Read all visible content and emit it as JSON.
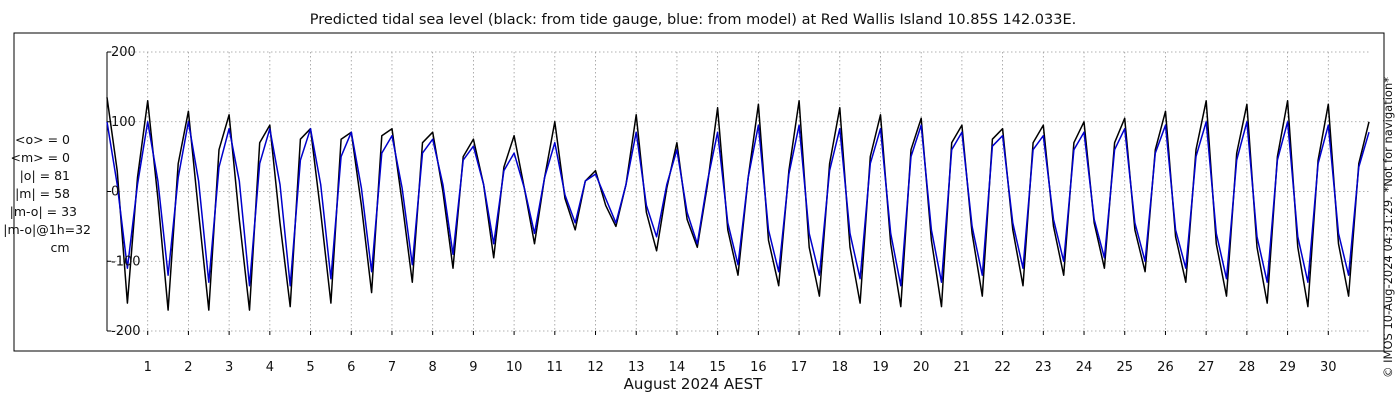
{
  "chart_data": {
    "type": "line",
    "title": "Predicted tidal sea level (black: from tide gauge, blue: from model) at Red Wallis Island 10.85S 142.033E.",
    "xlabel": "August 2024 AEST",
    "ylabel": "",
    "units": "cm",
    "xlim": [
      0.0,
      31.0
    ],
    "ylim": [
      -200,
      200
    ],
    "yticks": [
      -200,
      -100,
      0,
      100,
      200
    ],
    "xticks": [
      1,
      2,
      3,
      4,
      5,
      6,
      7,
      8,
      9,
      10,
      11,
      12,
      13,
      14,
      15,
      16,
      17,
      18,
      19,
      20,
      21,
      22,
      23,
      24,
      25,
      26,
      27,
      28,
      29,
      30
    ],
    "grid": true,
    "series": [
      {
        "color": "#000000",
        "x": [
          0.0,
          0.25,
          0.5,
          0.75,
          1.0,
          1.25,
          1.5,
          1.75,
          2.0,
          2.25,
          2.5,
          2.75,
          3.0,
          3.25,
          3.5,
          3.75,
          4.0,
          4.25,
          4.5,
          4.75,
          5.0,
          5.25,
          5.5,
          5.75,
          6.0,
          6.25,
          6.5,
          6.75,
          7.0,
          7.25,
          7.5,
          7.75,
          8.0,
          8.25,
          8.5,
          8.75,
          9.0,
          9.25,
          9.5,
          9.75,
          10.0,
          10.25,
          10.5,
          10.75,
          11.0,
          11.25,
          11.5,
          11.75,
          12.0,
          12.25,
          12.5,
          12.75,
          13.0,
          13.25,
          13.5,
          13.75,
          14.0,
          14.25,
          14.5,
          14.75,
          15.0,
          15.25,
          15.5,
          15.75,
          16.0,
          16.25,
          16.5,
          16.75,
          17.0,
          17.25,
          17.5,
          17.75,
          18.0,
          18.25,
          18.5,
          18.75,
          19.0,
          19.25,
          19.5,
          19.75,
          20.0,
          20.25,
          20.5,
          20.75,
          21.0,
          21.25,
          21.5,
          21.75,
          22.0,
          22.25,
          22.5,
          22.75,
          23.0,
          23.25,
          23.5,
          23.75,
          24.0,
          24.25,
          24.5,
          24.75,
          25.0,
          25.25,
          25.5,
          25.75,
          26.0,
          26.25,
          26.5,
          26.75,
          27.0,
          27.25,
          27.5,
          27.75,
          28.0,
          28.25,
          28.5,
          28.75,
          29.0,
          29.25,
          29.5,
          29.75,
          30.0,
          30.25,
          30.5,
          30.75,
          31.0
        ],
        "y": [
          135,
          30,
          -160,
          20,
          130,
          -10,
          -170,
          40,
          115,
          -30,
          -170,
          60,
          110,
          -40,
          -170,
          70,
          95,
          -45,
          -165,
          75,
          90,
          -30,
          -160,
          75,
          85,
          -20,
          -145,
          80,
          90,
          -15,
          -130,
          70,
          85,
          0,
          -110,
          50,
          75,
          10,
          -95,
          35,
          80,
          5,
          -75,
          20,
          100,
          -10,
          -55,
          15,
          30,
          -20,
          -50,
          10,
          110,
          -30,
          -85,
          5,
          70,
          -40,
          -80,
          10,
          120,
          -55,
          -120,
          20,
          125,
          -70,
          -135,
          30,
          130,
          -80,
          -150,
          40,
          120,
          -80,
          -160,
          50,
          110,
          -75,
          -165,
          60,
          105,
          -70,
          -165,
          70,
          95,
          -60,
          -150,
          75,
          90,
          -55,
          -135,
          70,
          95,
          -50,
          -120,
          70,
          100,
          -45,
          -110,
          70,
          105,
          -55,
          -115,
          60,
          115,
          -65,
          -130,
          60,
          130,
          -75,
          -150,
          55,
          125,
          -80,
          -160,
          50,
          130,
          -80,
          -165,
          45,
          125,
          -75,
          -150,
          40,
          100
        ]
      },
      {
        "color": "#0000cc",
        "x": [
          0.0,
          0.25,
          0.5,
          0.75,
          1.0,
          1.25,
          1.5,
          1.75,
          2.0,
          2.25,
          2.5,
          2.75,
          3.0,
          3.25,
          3.5,
          3.75,
          4.0,
          4.25,
          4.5,
          4.75,
          5.0,
          5.25,
          5.5,
          5.75,
          6.0,
          6.25,
          6.5,
          6.75,
          7.0,
          7.25,
          7.5,
          7.75,
          8.0,
          8.25,
          8.5,
          8.75,
          9.0,
          9.25,
          9.5,
          9.75,
          10.0,
          10.25,
          10.5,
          10.75,
          11.0,
          11.25,
          11.5,
          11.75,
          12.0,
          12.25,
          12.5,
          12.75,
          13.0,
          13.25,
          13.5,
          13.75,
          14.0,
          14.25,
          14.5,
          14.75,
          15.0,
          15.25,
          15.5,
          15.75,
          16.0,
          16.25,
          16.5,
          16.75,
          17.0,
          17.25,
          17.5,
          17.75,
          18.0,
          18.25,
          18.5,
          18.75,
          19.0,
          19.25,
          19.5,
          19.75,
          20.0,
          20.25,
          20.5,
          20.75,
          21.0,
          21.25,
          21.5,
          21.75,
          22.0,
          22.25,
          22.5,
          22.75,
          23.0,
          23.25,
          23.5,
          23.75,
          24.0,
          24.25,
          24.5,
          24.75,
          25.0,
          25.25,
          25.5,
          25.75,
          26.0,
          26.25,
          26.5,
          26.75,
          27.0,
          27.25,
          27.5,
          27.75,
          28.0,
          28.25,
          28.5,
          28.75,
          29.0,
          29.25,
          29.5,
          29.75,
          30.0,
          30.25,
          30.5,
          30.75,
          31.0
        ],
        "y": [
          100,
          10,
          -110,
          10,
          100,
          15,
          -120,
          20,
          100,
          15,
          -130,
          35,
          90,
          15,
          -135,
          40,
          90,
          10,
          -135,
          45,
          90,
          10,
          -125,
          50,
          85,
          5,
          -115,
          55,
          80,
          5,
          -105,
          55,
          75,
          10,
          -90,
          45,
          65,
          10,
          -75,
          30,
          55,
          5,
          -60,
          20,
          70,
          -5,
          -45,
          15,
          25,
          -10,
          -45,
          10,
          85,
          -20,
          -65,
          10,
          60,
          -30,
          -75,
          15,
          85,
          -45,
          -105,
          20,
          95,
          -55,
          -115,
          25,
          95,
          -60,
          -120,
          30,
          90,
          -60,
          -125,
          40,
          90,
          -60,
          -135,
          50,
          95,
          -55,
          -130,
          60,
          85,
          -50,
          -120,
          65,
          80,
          -45,
          -110,
          60,
          80,
          -40,
          -100,
          60,
          85,
          -40,
          -95,
          60,
          90,
          -45,
          -100,
          55,
          95,
          -55,
          -110,
          50,
          100,
          -60,
          -125,
          45,
          100,
          -65,
          -130,
          45,
          100,
          -65,
          -130,
          40,
          95,
          -60,
          -120,
          35,
          85
        ]
      }
    ]
  },
  "stats": {
    "lines": [
      "<o> = 0",
      "<m> = 0",
      "|o| = 81",
      "|m| = 58",
      "|m-o| = 33",
      "|m-o|@1h=32",
      "cm"
    ]
  },
  "side_note": "© IMOS 10-Aug-2024 04:31:29. *Not for navigation*",
  "colors": {
    "gauge": "#000000",
    "model": "#0000cc",
    "grid": "#999999"
  }
}
